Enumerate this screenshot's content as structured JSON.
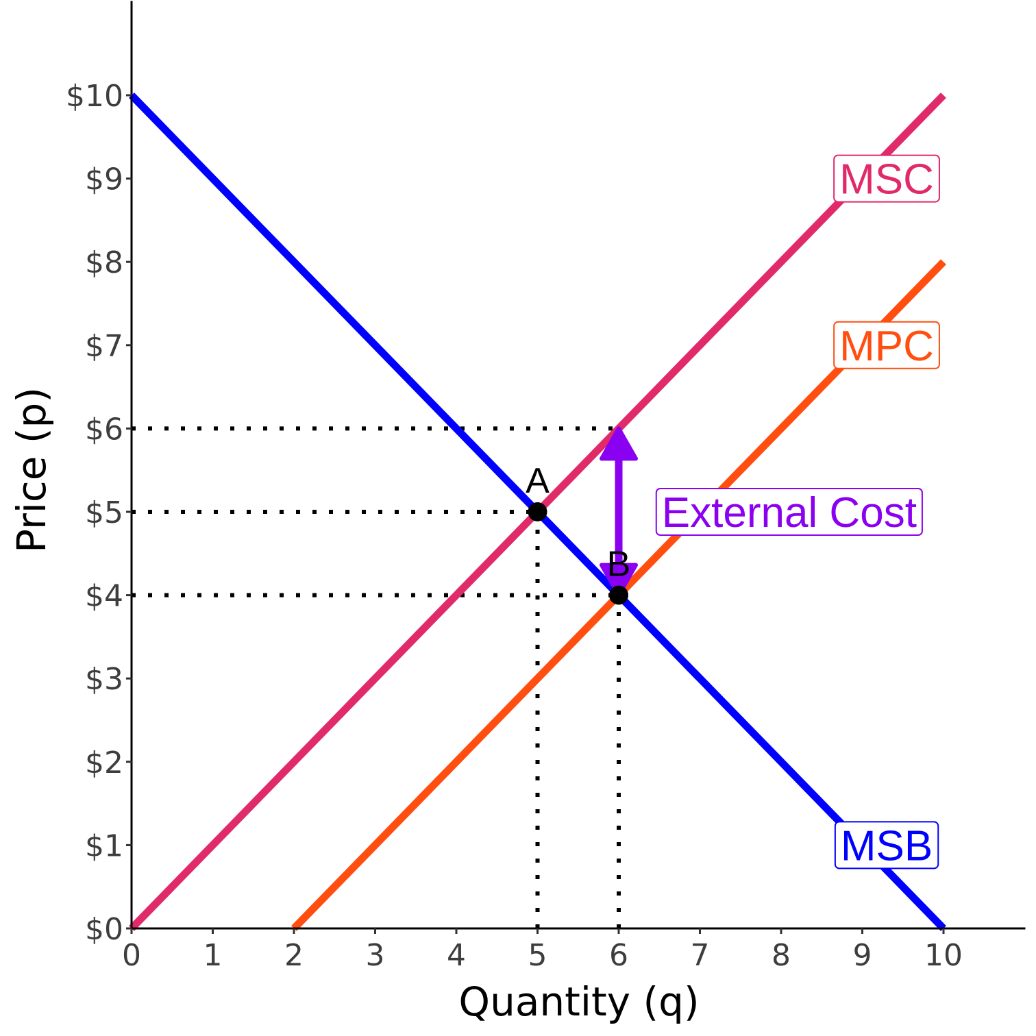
{
  "chart_data": {
    "type": "line",
    "title": "",
    "xlabel": "Quantity (q)",
    "ylabel": "Price (p)",
    "xlim": [
      0,
      11
    ],
    "ylim": [
      0,
      11
    ],
    "x_ticks": [
      0,
      1,
      2,
      3,
      4,
      5,
      6,
      7,
      8,
      9,
      10
    ],
    "x_tick_labels": [
      "0",
      "1",
      "2",
      "3",
      "4",
      "5",
      "6",
      "7",
      "8",
      "9",
      "10"
    ],
    "y_ticks": [
      0,
      1,
      2,
      3,
      4,
      5,
      6,
      7,
      8,
      9,
      10
    ],
    "y_tick_labels": [
      "$0",
      "$1",
      "$2",
      "$3",
      "$4",
      "$5",
      "$6",
      "$7",
      "$8",
      "$9",
      "$10"
    ],
    "grid": false,
    "series": [
      {
        "name": "MSB",
        "color": "#0000ff",
        "points": [
          [
            0,
            10
          ],
          [
            10,
            0
          ]
        ],
        "label": "MSB",
        "label_at": [
          9.3,
          1
        ]
      },
      {
        "name": "MSC",
        "color": "#e02a6a",
        "points": [
          [
            0,
            0
          ],
          [
            10,
            10
          ]
        ],
        "label": "MSC",
        "label_at": [
          9.3,
          9
        ]
      },
      {
        "name": "MPC",
        "color": "#ff4e0f",
        "points": [
          [
            2,
            0
          ],
          [
            10,
            8
          ]
        ],
        "label": "MPC",
        "label_at": [
          9.3,
          7
        ]
      }
    ],
    "points": [
      {
        "label": "A",
        "x": 5,
        "y": 5
      },
      {
        "label": "B",
        "x": 6,
        "y": 4
      }
    ],
    "guides": [
      {
        "from": [
          0,
          6
        ],
        "to": [
          6,
          6
        ]
      },
      {
        "from": [
          0,
          5
        ],
        "to": [
          5,
          5
        ]
      },
      {
        "from": [
          0,
          4
        ],
        "to": [
          6,
          4
        ]
      },
      {
        "from": [
          5,
          0
        ],
        "to": [
          5,
          5
        ]
      },
      {
        "from": [
          6,
          0
        ],
        "to": [
          6,
          4
        ]
      }
    ],
    "annotation": {
      "text": "External Cost",
      "color": "#8a00f0",
      "arrow_x": 6,
      "arrow_from": 4,
      "arrow_to": 6,
      "label_at": [
        8.1,
        5
      ]
    }
  }
}
